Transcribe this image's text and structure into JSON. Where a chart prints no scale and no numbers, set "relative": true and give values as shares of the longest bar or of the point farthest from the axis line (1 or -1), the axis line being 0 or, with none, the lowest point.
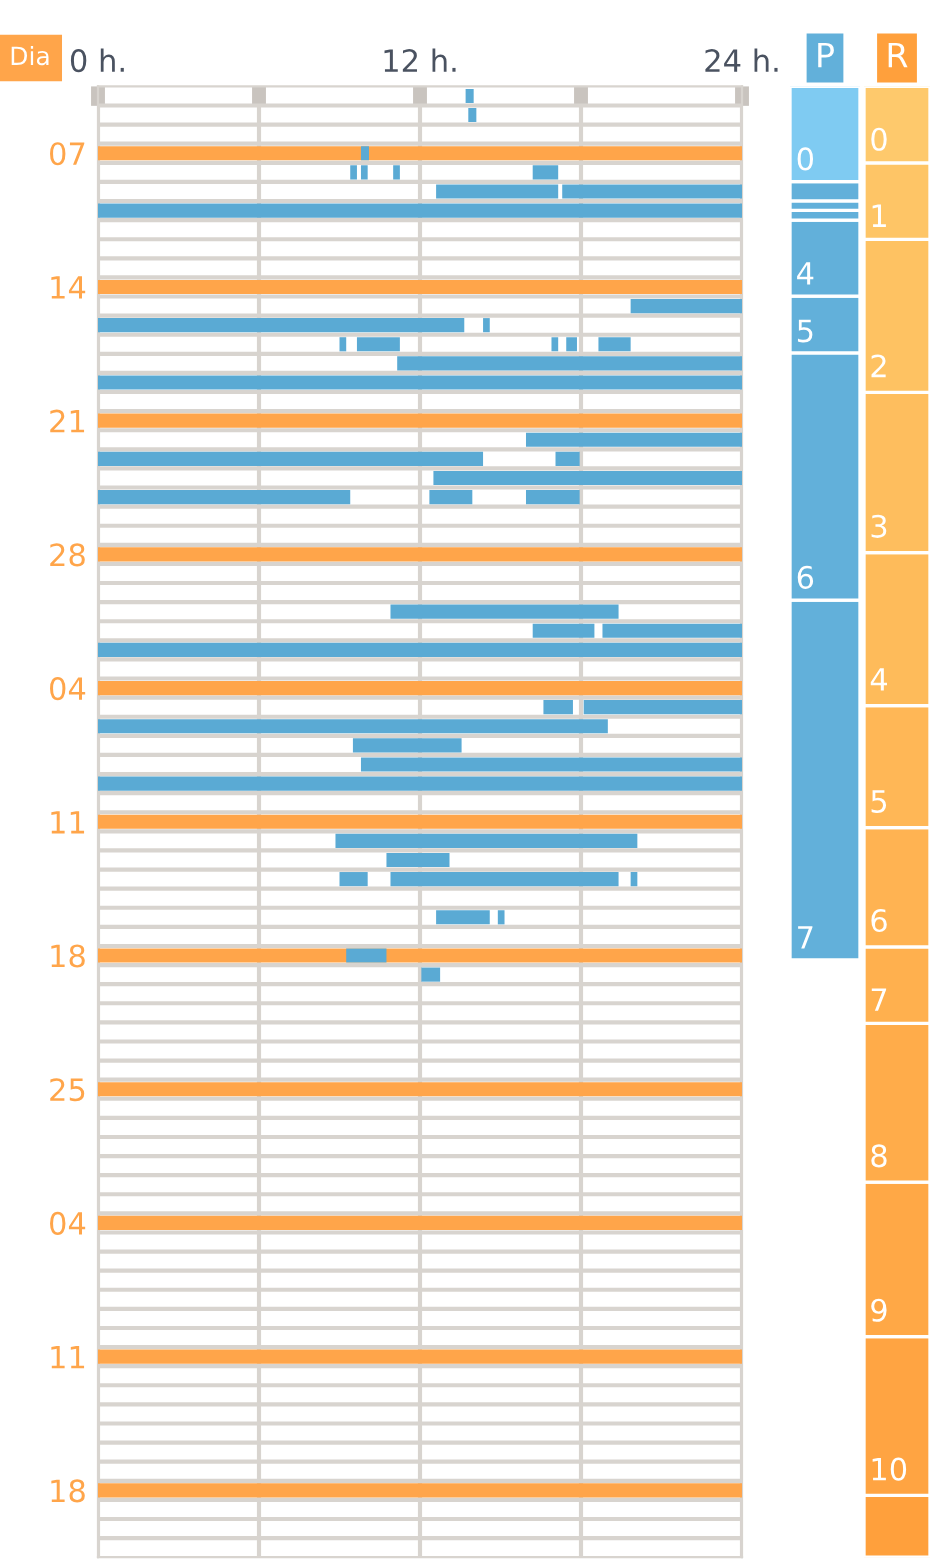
{
  "chart_data": [
    {
      "type": "bar",
      "orientation": "horizontal",
      "ylabel": "Dia",
      "categories": [
        null,
        null,
        null,
        "07",
        null,
        null,
        null,
        null,
        null,
        null,
        "14",
        null,
        null,
        null,
        null,
        null,
        null,
        "21",
        null,
        null,
        null,
        null,
        null,
        null,
        "28",
        null,
        null,
        null,
        null,
        null,
        null,
        "04",
        null,
        null,
        null,
        null,
        null,
        null,
        "11",
        null,
        null,
        null,
        null,
        null,
        null,
        "18",
        null,
        null,
        null,
        null,
        null,
        null,
        "25",
        null,
        null,
        null,
        null,
        null,
        null,
        "04",
        null,
        null,
        null,
        null,
        null,
        null,
        "11",
        null,
        null,
        null,
        null,
        null,
        null,
        "18",
        null,
        null,
        null
      ],
      "xlim": [
        0,
        24
      ],
      "xticks": [
        {
          "value": 0,
          "label": "0 h."
        },
        {
          "value": 6,
          "label": null
        },
        {
          "value": 12,
          "label": "12 h."
        },
        {
          "value": 18,
          "label": null
        },
        {
          "value": 24,
          "label": "24 h."
        }
      ],
      "grid": true,
      "series": [
        {
          "color": "#ffa54a",
          "base": [
            null,
            null,
            null,
            0,
            null,
            null,
            null,
            null,
            null,
            null,
            0,
            null,
            null,
            null,
            null,
            null,
            null,
            0,
            null,
            null,
            null,
            null,
            null,
            null,
            0,
            null,
            null,
            null,
            null,
            null,
            null,
            0,
            null,
            null,
            null,
            null,
            null,
            null,
            0,
            null,
            null,
            null,
            null,
            null,
            null,
            0,
            null,
            null,
            null,
            null,
            null,
            null,
            0,
            null,
            null,
            null,
            null,
            null,
            null,
            0,
            null,
            null,
            null,
            null,
            null,
            null,
            0,
            null,
            null,
            null,
            null,
            null,
            null,
            0,
            null,
            null,
            null
          ],
          "values": [
            null,
            null,
            null,
            24,
            null,
            null,
            null,
            null,
            null,
            null,
            24,
            null,
            null,
            null,
            null,
            null,
            null,
            24,
            null,
            null,
            null,
            null,
            null,
            null,
            24,
            null,
            null,
            null,
            null,
            null,
            null,
            24,
            null,
            null,
            null,
            null,
            null,
            null,
            24,
            null,
            null,
            null,
            null,
            null,
            null,
            24,
            null,
            null,
            null,
            null,
            null,
            null,
            24,
            null,
            null,
            null,
            null,
            null,
            null,
            24,
            null,
            null,
            null,
            null,
            null,
            null,
            24,
            null,
            null,
            null,
            null,
            null,
            null,
            24,
            null,
            null,
            null
          ]
        },
        {
          "color": "#5aaad4",
          "base": [
            13.7,
            13.8,
            null,
            9.8,
            9.4,
            12.6,
            0,
            null,
            null,
            null,
            null,
            19.85,
            0,
            9.0,
            11.15,
            0,
            null,
            null,
            15.95,
            0,
            12.5,
            0,
            null,
            null,
            null,
            null,
            null,
            10.9,
            16.2,
            0,
            null,
            null,
            16.6,
            0,
            9.5,
            9.8,
            0,
            null,
            null,
            8.85,
            10.75,
            9.0,
            null,
            12.6,
            null,
            9.25,
            12.05,
            null,
            null,
            null,
            null,
            null,
            null,
            null,
            null,
            null,
            null,
            null,
            null,
            null,
            null,
            null,
            null,
            null,
            null,
            null,
            null,
            null,
            null,
            null,
            null,
            null,
            null,
            null,
            null,
            null,
            null
          ],
          "values": [
            0.3,
            0.3,
            null,
            0.3,
            0.25,
            4.55,
            24,
            null,
            null,
            null,
            null,
            4.15,
            13.65,
            0.25,
            12.85,
            24,
            null,
            null,
            8.05,
            14.35,
            11.5,
            9.4,
            null,
            null,
            null,
            null,
            null,
            8.5,
            2.3,
            24,
            null,
            null,
            1.1,
            19,
            4.05,
            14.2,
            24,
            null,
            null,
            11.25,
            2.35,
            1.05,
            null,
            2.0,
            null,
            1.5,
            0.7,
            null,
            null,
            null,
            null,
            null,
            null,
            null,
            null,
            null,
            null,
            null,
            null,
            null,
            null,
            null,
            null,
            null,
            null,
            null,
            null,
            null,
            null,
            null,
            null,
            null,
            null,
            null,
            null,
            null,
            null
          ]
        },
        {
          "color": "#5aaad4",
          "base": [
            null,
            null,
            null,
            null,
            9.8,
            17.3,
            null,
            null,
            null,
            null,
            null,
            null,
            14.35,
            9.65,
            null,
            null,
            null,
            null,
            null,
            17.05,
            null,
            12.35,
            null,
            null,
            null,
            null,
            null,
            null,
            18.8,
            null,
            null,
            null,
            18.1,
            null,
            null,
            null,
            null,
            null,
            null,
            null,
            null,
            10.9,
            null,
            14.9,
            null,
            null,
            null,
            null,
            null,
            null,
            null,
            null,
            null,
            null,
            null,
            null,
            null,
            null,
            null,
            null,
            null,
            null,
            null,
            null,
            null,
            null,
            null,
            null,
            null,
            null,
            null,
            null,
            null,
            null,
            null,
            null,
            null
          ],
          "values": [
            null,
            null,
            null,
            null,
            0.25,
            6.7,
            null,
            null,
            null,
            null,
            null,
            null,
            0.25,
            1.6,
            null,
            null,
            null,
            null,
            null,
            0.9,
            null,
            1.6,
            null,
            null,
            null,
            null,
            null,
            null,
            5.2,
            null,
            null,
            null,
            5.9,
            null,
            null,
            null,
            null,
            null,
            null,
            null,
            null,
            8.5,
            null,
            0.25,
            null,
            null,
            null,
            null,
            null,
            null,
            null,
            null,
            null,
            null,
            null,
            null,
            null,
            null,
            null,
            null,
            null,
            null,
            null,
            null,
            null,
            null,
            null,
            null,
            null,
            null,
            null,
            null,
            null,
            null,
            null,
            null,
            null
          ]
        },
        {
          "color": "#5aaad4",
          "base": [
            null,
            null,
            null,
            null,
            11.0,
            null,
            null,
            null,
            null,
            null,
            null,
            null,
            null,
            16.9,
            null,
            null,
            null,
            null,
            null,
            null,
            null,
            15.95,
            null,
            null,
            null,
            null,
            null,
            null,
            null,
            null,
            null,
            null,
            null,
            null,
            null,
            null,
            null,
            null,
            null,
            null,
            null,
            19.85,
            null,
            null,
            null,
            null,
            null,
            null,
            null,
            null,
            null,
            null,
            null,
            null,
            null,
            null,
            null,
            null,
            null,
            null,
            null,
            null,
            null,
            null,
            null,
            null,
            null,
            null,
            null,
            null,
            null,
            null,
            null,
            null,
            null,
            null,
            null
          ],
          "values": [
            null,
            null,
            null,
            null,
            0.25,
            null,
            null,
            null,
            null,
            null,
            null,
            null,
            null,
            0.25,
            null,
            null,
            null,
            null,
            null,
            null,
            null,
            2.0,
            null,
            null,
            null,
            null,
            null,
            null,
            null,
            null,
            null,
            null,
            null,
            null,
            null,
            null,
            null,
            null,
            null,
            null,
            null,
            0.25,
            null,
            null,
            null,
            null,
            null,
            null,
            null,
            null,
            null,
            null,
            null,
            null,
            null,
            null,
            null,
            null,
            null,
            null,
            null,
            null,
            null,
            null,
            null,
            null,
            null,
            null,
            null,
            null,
            null,
            null,
            null,
            null,
            null,
            null,
            null
          ]
        },
        {
          "color": "#5aaad4",
          "base": [
            null,
            null,
            null,
            null,
            16.2,
            null,
            null,
            null,
            null,
            null,
            null,
            null,
            null,
            17.45,
            null,
            null,
            null,
            null,
            null,
            null,
            null,
            null,
            null,
            null,
            null,
            null,
            null,
            null,
            null,
            null,
            null,
            null,
            null,
            null,
            null,
            null,
            null,
            null,
            null,
            null,
            null,
            null,
            null,
            null,
            null,
            null,
            null,
            null,
            null,
            null,
            null,
            null,
            null,
            null,
            null,
            null,
            null,
            null,
            null,
            null,
            null,
            null,
            null,
            null,
            null,
            null,
            null,
            null,
            null,
            null,
            null,
            null,
            null,
            null,
            null,
            null,
            null
          ],
          "values": [
            null,
            null,
            null,
            null,
            0.95,
            null,
            null,
            null,
            null,
            null,
            null,
            null,
            null,
            0.4,
            null,
            null,
            null,
            null,
            null,
            null,
            null,
            null,
            null,
            null,
            null,
            null,
            null,
            null,
            null,
            null,
            null,
            null,
            null,
            null,
            null,
            null,
            null,
            null,
            null,
            null,
            null,
            null,
            null,
            null,
            null,
            null,
            null,
            null,
            null,
            null,
            null,
            null,
            null,
            null,
            null,
            null,
            null,
            null,
            null,
            null,
            null,
            null,
            null,
            null,
            null,
            null,
            null,
            null,
            null,
            null,
            null,
            null,
            null,
            null,
            null,
            null,
            null
          ]
        },
        {
          "color": "#5aaad4",
          "base": [
            null,
            null,
            null,
            null,
            null,
            null,
            null,
            null,
            null,
            null,
            null,
            null,
            null,
            18.65,
            null,
            null,
            null,
            null,
            null,
            null,
            null,
            null,
            null,
            null,
            null,
            null,
            null,
            null,
            null,
            null,
            null,
            null,
            null,
            null,
            null,
            null,
            null,
            null,
            null,
            null,
            null,
            null,
            null,
            null,
            null,
            null,
            null,
            null,
            null,
            null,
            null,
            null,
            null,
            null,
            null,
            null,
            null,
            null,
            null,
            null,
            null,
            null,
            null,
            null,
            null,
            null,
            null,
            null,
            null,
            null,
            null,
            null,
            null,
            null,
            null,
            null,
            null
          ],
          "values": [
            null,
            null,
            null,
            null,
            null,
            null,
            null,
            null,
            null,
            null,
            null,
            null,
            null,
            1.2,
            null,
            null,
            null,
            null,
            null,
            null,
            null,
            null,
            null,
            null,
            null,
            null,
            null,
            null,
            null,
            null,
            null,
            null,
            null,
            null,
            null,
            null,
            null,
            null,
            null,
            null,
            null,
            null,
            null,
            null,
            null,
            null,
            null,
            null,
            null,
            null,
            null,
            null,
            null,
            null,
            null,
            null,
            null,
            null,
            null,
            null,
            null,
            null,
            null,
            null,
            null,
            null,
            null,
            null,
            null,
            null,
            null,
            null,
            null,
            null,
            null,
            null,
            null
          ]
        }
      ]
    },
    {
      "type": "bar",
      "title": "P",
      "stacked": true,
      "relative": true,
      "categories": [
        null
      ],
      "tick_labels": false,
      "series": [
        {
          "name": "7",
          "color": "#62b0da",
          "values": [
            0.412
          ]
        },
        {
          "name": "6",
          "color": "#62b0da",
          "values": [
            0.283
          ]
        },
        {
          "name": "5",
          "color": "#62b0da",
          "values": [
            0.065
          ]
        },
        {
          "name": "4",
          "color": "#62b0da",
          "values": [
            0.087
          ]
        },
        {
          "color": "#62b0da",
          "values": [
            0.011
          ]
        },
        {
          "color": "#62b0da",
          "values": [
            0.011
          ]
        },
        {
          "color": "#62b0da",
          "values": [
            0.022
          ]
        },
        {
          "name": "0",
          "color": "#7fcbf2",
          "values": [
            0.109
          ]
        }
      ]
    },
    {
      "type": "bar",
      "title": "R",
      "stacked": true,
      "relative": true,
      "categories": [
        null
      ],
      "tick_labels": false,
      "series": [
        {
          "color": "#ffa03c",
          "values": [
            0.042
          ]
        },
        {
          "name": "10",
          "color": "#ffa442",
          "values": [
            0.108
          ]
        },
        {
          "name": "9",
          "color": "#ffa846",
          "values": [
            0.105
          ]
        },
        {
          "name": "8",
          "color": "#ffac4a",
          "values": [
            0.108
          ]
        },
        {
          "name": "7",
          "color": "#ffb04e",
          "values": [
            0.052
          ]
        },
        {
          "name": "6",
          "color": "#ffb352",
          "values": [
            0.081
          ]
        },
        {
          "name": "5",
          "color": "#ffb756",
          "values": [
            0.083
          ]
        },
        {
          "name": "4",
          "color": "#febb5a",
          "values": [
            0.104
          ]
        },
        {
          "name": "3",
          "color": "#febe5e",
          "values": [
            0.109
          ]
        },
        {
          "name": "2",
          "color": "#fec262",
          "values": [
            0.104
          ]
        },
        {
          "name": "1",
          "color": "#fec566",
          "values": [
            0.052
          ]
        },
        {
          "name": "0",
          "color": "#fec96c",
          "values": [
            0.052
          ]
        }
      ]
    }
  ]
}
